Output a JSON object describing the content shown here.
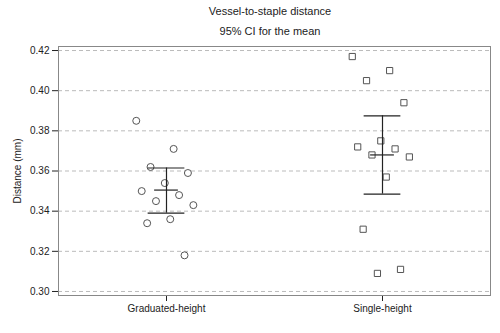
{
  "chart_data": {
    "type": "scatter",
    "title": "Vessel-to-staple distance",
    "subtitle": "95% CI for the mean",
    "y_label": "Distance (mm)",
    "series": [
      {
        "name": "Graduated-height",
        "marker": "circle",
        "color": "#555555",
        "values": [
          0.385,
          0.371,
          0.362,
          0.359,
          0.354,
          0.35,
          0.348,
          0.345,
          0.343,
          0.336,
          0.334,
          0.318
        ],
        "mean": 0.3505,
        "ci": [
          0.339,
          0.3615
        ]
      },
      {
        "name": "Single-height",
        "marker": "square",
        "color": "#555555",
        "values": [
          0.417,
          0.41,
          0.405,
          0.394,
          0.375,
          0.372,
          0.371,
          0.368,
          0.367,
          0.357,
          0.331,
          0.311,
          0.309
        ],
        "mean": 0.368,
        "ci": [
          0.3485,
          0.3875
        ]
      }
    ],
    "ylim": [
      0.298,
      0.422
    ],
    "yticks": [
      {
        "value": 0.3,
        "label": "0.30"
      },
      {
        "value": 0.32,
        "label": "0.32"
      },
      {
        "value": 0.34,
        "label": "0.34"
      },
      {
        "value": 0.36,
        "label": "0.36"
      },
      {
        "value": 0.38,
        "label": "0.38"
      },
      {
        "value": 0.4,
        "label": "0.40"
      },
      {
        "value": 0.42,
        "label": "0.42"
      }
    ],
    "grid": true
  }
}
